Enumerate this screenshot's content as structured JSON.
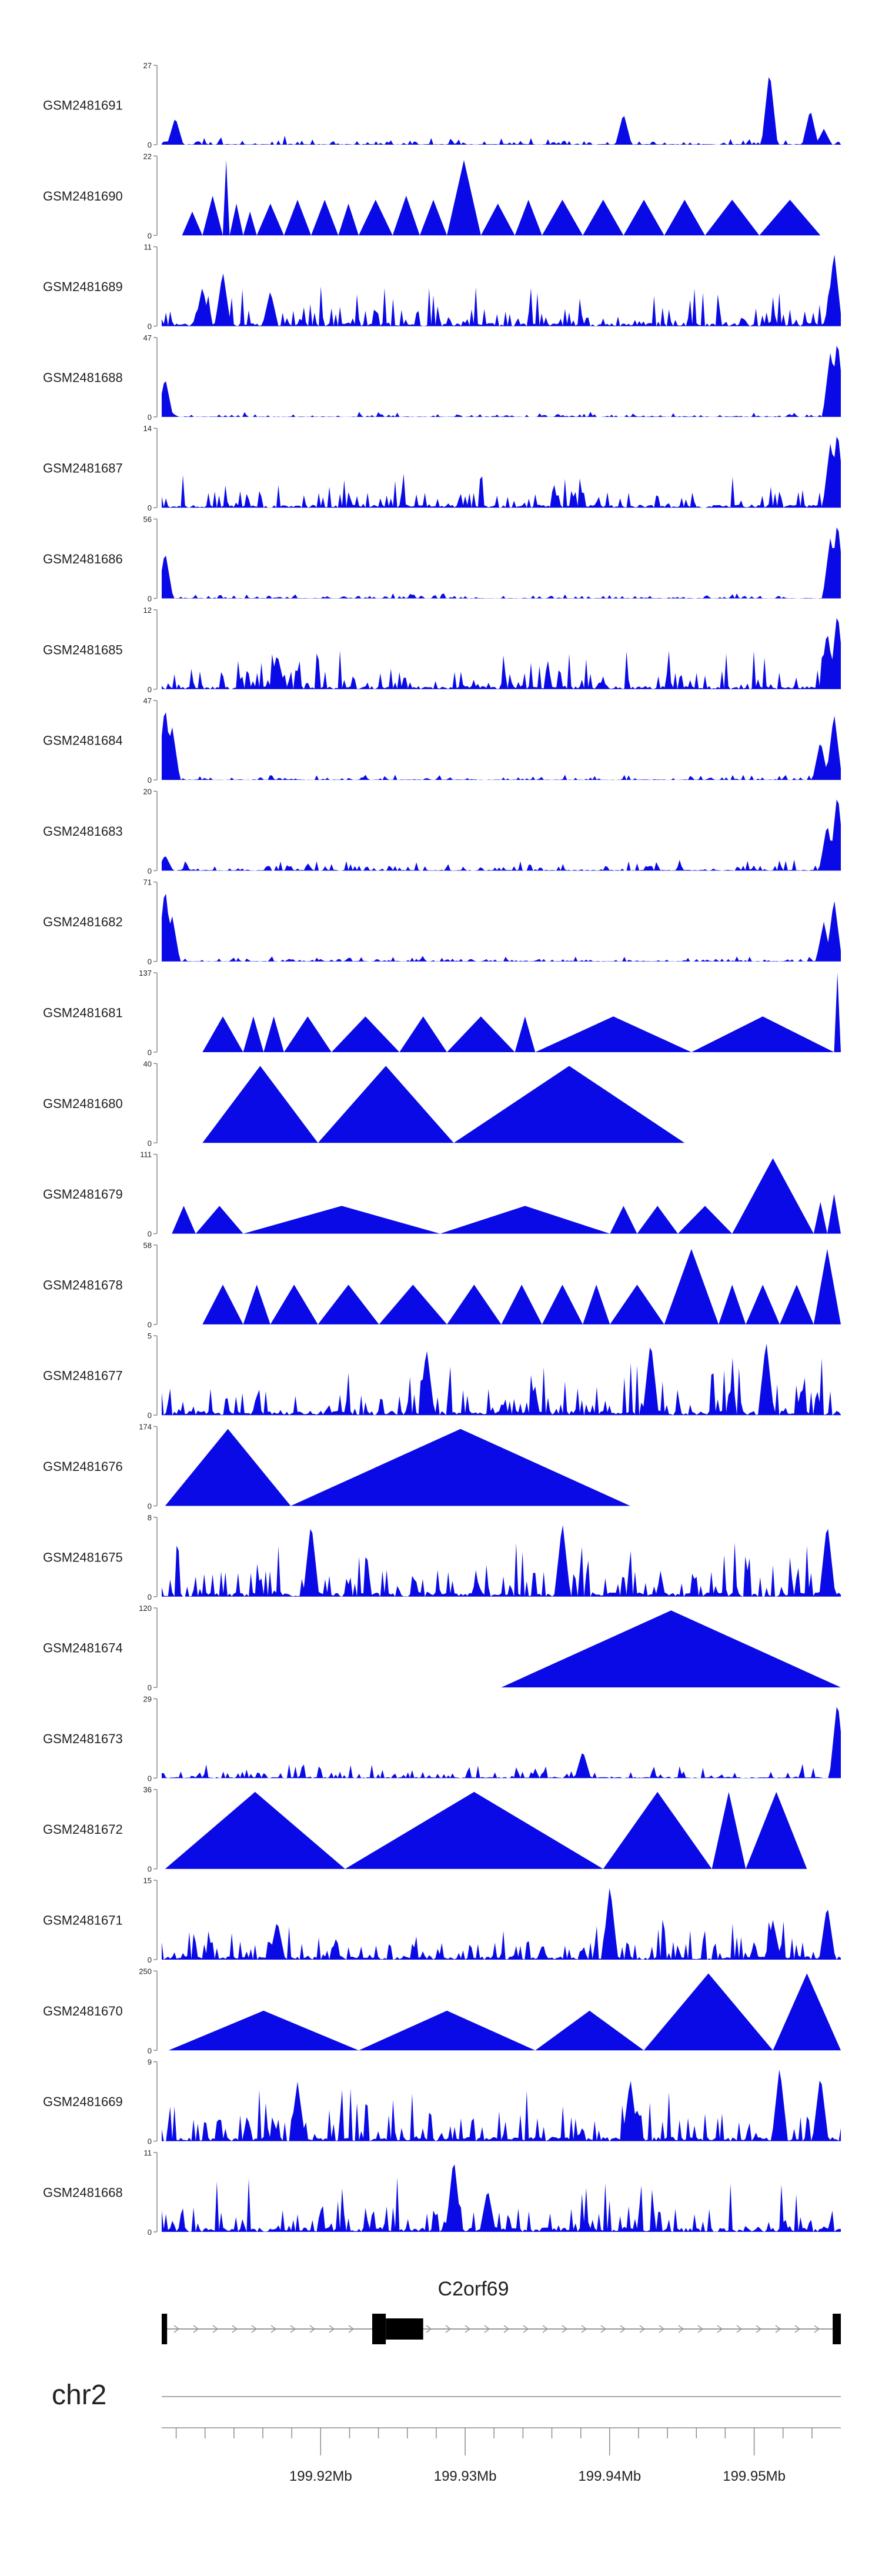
{
  "colors": {
    "signal": "#0a0ae6",
    "axis": "#8c8c8c",
    "gene": "#000000",
    "text": "#222222"
  },
  "chart_data": {
    "type": "area",
    "title": "",
    "xlabel": "",
    "xlim": [
      199.909,
      199.956
    ],
    "tracks": [
      {
        "name": "GSM2481691",
        "ymax": "27",
        "pattern": "noise",
        "peak": 27,
        "base": 0.05,
        "seed": 11,
        "spikes": [
          [
            0.02,
            0.35
          ],
          [
            0.68,
            0.4
          ],
          [
            0.895,
            0.95
          ],
          [
            0.955,
            0.45
          ],
          [
            0.975,
            0.2
          ]
        ]
      },
      {
        "name": "GSM2481690",
        "ymax": "22",
        "pattern": "tri",
        "peak": 22,
        "segs": [
          [
            0.03,
            0.06,
            0.3
          ],
          [
            0.06,
            0.09,
            0.5
          ],
          [
            0.09,
            0.1,
            0.95
          ],
          [
            0.1,
            0.12,
            0.4
          ],
          [
            0.12,
            0.14,
            0.3
          ],
          [
            0.14,
            0.18,
            0.4
          ],
          [
            0.18,
            0.22,
            0.45
          ],
          [
            0.22,
            0.26,
            0.45
          ],
          [
            0.26,
            0.29,
            0.4
          ],
          [
            0.29,
            0.34,
            0.45
          ],
          [
            0.34,
            0.38,
            0.5
          ],
          [
            0.38,
            0.42,
            0.45
          ],
          [
            0.42,
            0.47,
            0.95
          ],
          [
            0.47,
            0.52,
            0.4
          ],
          [
            0.52,
            0.56,
            0.45
          ],
          [
            0.56,
            0.62,
            0.45
          ],
          [
            0.62,
            0.68,
            0.45
          ],
          [
            0.68,
            0.74,
            0.45
          ],
          [
            0.74,
            0.8,
            0.45
          ],
          [
            0.8,
            0.88,
            0.45
          ],
          [
            0.88,
            0.97,
            0.45
          ]
        ]
      },
      {
        "name": "GSM2481689",
        "ymax": "11",
        "pattern": "noise",
        "peak": 11,
        "base": 0.22,
        "seed": 23,
        "spikes": [
          [
            0.06,
            0.5
          ],
          [
            0.09,
            0.7
          ],
          [
            0.16,
            0.45
          ],
          [
            0.99,
            0.95
          ]
        ]
      },
      {
        "name": "GSM2481688",
        "ymax": "47",
        "pattern": "noise",
        "peak": 47,
        "base": 0.03,
        "seed": 31,
        "spikes": [
          [
            0.005,
            0.5
          ],
          [
            0.985,
            0.85
          ],
          [
            0.995,
            1.0
          ]
        ]
      },
      {
        "name": "GSM2481687",
        "ymax": "14",
        "pattern": "noise",
        "peak": 14,
        "base": 0.2,
        "seed": 37,
        "spikes": [
          [
            0.985,
            0.85
          ],
          [
            0.995,
            1.0
          ]
        ]
      },
      {
        "name": "GSM2481686",
        "ymax": "56",
        "pattern": "noise",
        "peak": 56,
        "base": 0.03,
        "seed": 41,
        "spikes": [
          [
            0.005,
            0.6
          ],
          [
            0.985,
            0.8
          ],
          [
            0.995,
            1.0
          ]
        ]
      },
      {
        "name": "GSM2481685",
        "ymax": "12",
        "pattern": "noise",
        "peak": 12,
        "base": 0.22,
        "seed": 43,
        "spikes": [
          [
            0.17,
            0.45
          ],
          [
            0.98,
            0.75
          ],
          [
            0.995,
            1.0
          ]
        ]
      },
      {
        "name": "GSM2481684",
        "ymax": "47",
        "pattern": "noise",
        "peak": 47,
        "base": 0.03,
        "seed": 47,
        "spikes": [
          [
            0.005,
            0.95
          ],
          [
            0.015,
            0.7
          ],
          [
            0.97,
            0.5
          ],
          [
            0.99,
            0.85
          ]
        ]
      },
      {
        "name": "GSM2481683",
        "ymax": "20",
        "pattern": "noise",
        "peak": 20,
        "base": 0.06,
        "seed": 53,
        "spikes": [
          [
            0.005,
            0.2
          ],
          [
            0.98,
            0.6
          ],
          [
            0.995,
            1.0
          ]
        ]
      },
      {
        "name": "GSM2481682",
        "ymax": "71",
        "pattern": "noise",
        "peak": 71,
        "base": 0.03,
        "seed": 59,
        "spikes": [
          [
            0.005,
            0.95
          ],
          [
            0.015,
            0.6
          ],
          [
            0.975,
            0.5
          ],
          [
            0.99,
            0.8
          ]
        ]
      },
      {
        "name": "GSM2481681",
        "ymax": "137",
        "pattern": "tri",
        "peak": 137,
        "segs": [
          [
            0.06,
            0.12,
            0.45
          ],
          [
            0.12,
            0.15,
            0.45
          ],
          [
            0.15,
            0.18,
            0.45
          ],
          [
            0.18,
            0.25,
            0.45
          ],
          [
            0.25,
            0.35,
            0.45
          ],
          [
            0.35,
            0.42,
            0.45
          ],
          [
            0.42,
            0.52,
            0.45
          ],
          [
            0.52,
            0.55,
            0.45
          ],
          [
            0.55,
            0.78,
            0.45
          ],
          [
            0.78,
            0.99,
            0.45
          ],
          [
            0.99,
            1.0,
            1.0
          ]
        ]
      },
      {
        "name": "GSM2481680",
        "ymax": "40",
        "pattern": "tri",
        "peak": 40,
        "segs": [
          [
            0.06,
            0.23,
            0.97
          ],
          [
            0.23,
            0.43,
            0.97
          ],
          [
            0.43,
            0.77,
            0.97
          ]
        ]
      },
      {
        "name": "GSM2481679",
        "ymax": "111",
        "pattern": "tri",
        "peak": 111,
        "segs": [
          [
            0.015,
            0.05,
            0.35
          ],
          [
            0.05,
            0.12,
            0.35
          ],
          [
            0.12,
            0.41,
            0.35
          ],
          [
            0.41,
            0.66,
            0.35
          ],
          [
            0.66,
            0.7,
            0.35
          ],
          [
            0.7,
            0.76,
            0.35
          ],
          [
            0.76,
            0.84,
            0.35
          ],
          [
            0.84,
            0.96,
            0.95
          ],
          [
            0.96,
            0.98,
            0.4
          ],
          [
            0.98,
            1.0,
            0.5
          ]
        ]
      },
      {
        "name": "GSM2481678",
        "ymax": "58",
        "pattern": "tri",
        "peak": 58,
        "segs": [
          [
            0.06,
            0.12,
            0.5
          ],
          [
            0.12,
            0.16,
            0.5
          ],
          [
            0.16,
            0.23,
            0.5
          ],
          [
            0.23,
            0.32,
            0.5
          ],
          [
            0.32,
            0.42,
            0.5
          ],
          [
            0.42,
            0.5,
            0.5
          ],
          [
            0.5,
            0.56,
            0.5
          ],
          [
            0.56,
            0.62,
            0.5
          ],
          [
            0.62,
            0.66,
            0.5
          ],
          [
            0.66,
            0.74,
            0.5
          ],
          [
            0.74,
            0.82,
            0.95
          ],
          [
            0.82,
            0.86,
            0.5
          ],
          [
            0.86,
            0.91,
            0.5
          ],
          [
            0.91,
            0.96,
            0.5
          ],
          [
            0.96,
            1.0,
            0.95
          ]
        ]
      },
      {
        "name": "GSM2481677",
        "ymax": "5",
        "pattern": "noise",
        "peak": 5,
        "base": 0.32,
        "seed": 61,
        "spikes": [
          [
            0.39,
            0.85
          ],
          [
            0.72,
            0.95
          ],
          [
            0.89,
            0.95
          ]
        ]
      },
      {
        "name": "GSM2481676",
        "ymax": "174",
        "pattern": "tri",
        "peak": 174,
        "segs": [
          [
            0.005,
            0.19,
            0.97
          ],
          [
            0.19,
            0.69,
            0.97
          ]
        ]
      },
      {
        "name": "GSM2481675",
        "ymax": "8",
        "pattern": "noise",
        "peak": 8,
        "base": 0.3,
        "seed": 67,
        "spikes": [
          [
            0.22,
            0.95
          ],
          [
            0.59,
            0.95
          ],
          [
            0.98,
            0.95
          ]
        ]
      },
      {
        "name": "GSM2481674",
        "ymax": "120",
        "pattern": "tri",
        "peak": 120,
        "segs": [
          [
            0.5,
            1.0,
            0.97
          ]
        ]
      },
      {
        "name": "GSM2481673",
        "ymax": "29",
        "pattern": "noise",
        "peak": 29,
        "base": 0.08,
        "seed": 71,
        "spikes": [
          [
            0.62,
            0.35
          ],
          [
            0.995,
            1.0
          ]
        ]
      },
      {
        "name": "GSM2481672",
        "ymax": "36",
        "pattern": "tri",
        "peak": 36,
        "segs": [
          [
            0.005,
            0.27,
            0.97
          ],
          [
            0.27,
            0.65,
            0.97
          ],
          [
            0.65,
            0.81,
            0.97
          ],
          [
            0.81,
            0.86,
            0.97
          ],
          [
            0.86,
            0.95,
            0.97
          ]
        ]
      },
      {
        "name": "GSM2481671",
        "ymax": "15",
        "pattern": "noise",
        "peak": 15,
        "base": 0.22,
        "seed": 73,
        "spikes": [
          [
            0.17,
            0.5
          ],
          [
            0.66,
            0.95
          ],
          [
            0.9,
            0.5
          ],
          [
            0.98,
            0.7
          ]
        ]
      },
      {
        "name": "GSM2481670",
        "ymax": "250",
        "pattern": "tri",
        "peak": 250,
        "segs": [
          [
            0.01,
            0.29,
            0.5
          ],
          [
            0.29,
            0.55,
            0.5
          ],
          [
            0.55,
            0.71,
            0.5
          ],
          [
            0.71,
            0.9,
            0.97
          ],
          [
            0.9,
            1.0,
            0.97
          ]
        ]
      },
      {
        "name": "GSM2481669",
        "ymax": "9",
        "pattern": "noise",
        "peak": 9,
        "base": 0.3,
        "seed": 79,
        "spikes": [
          [
            0.2,
            0.75
          ],
          [
            0.69,
            0.8
          ],
          [
            0.91,
            0.95
          ],
          [
            0.97,
            0.85
          ]
        ]
      },
      {
        "name": "GSM2481668",
        "ymax": "11",
        "pattern": "noise",
        "peak": 11,
        "base": 0.3,
        "seed": 83,
        "spikes": [
          [
            0.43,
            0.95
          ],
          [
            0.48,
            0.55
          ]
        ]
      }
    ],
    "gene": {
      "name": "C2orf69",
      "exons": [
        [
          0.0,
          0.008,
          "coding"
        ],
        [
          0.31,
          0.33,
          "coding"
        ],
        [
          0.33,
          0.385,
          "utr"
        ],
        [
          0.988,
          1.0,
          "coding"
        ]
      ]
    },
    "axis": {
      "chromosome": "chr2",
      "major_ticks": [
        199.92,
        199.93,
        199.94,
        199.95
      ],
      "tick_labels": [
        "199.92Mb",
        "199.93Mb",
        "199.94Mb",
        "199.95Mb"
      ],
      "minor_ticks": [
        199.91,
        199.912,
        199.914,
        199.916,
        199.918,
        199.922,
        199.924,
        199.926,
        199.928,
        199.932,
        199.934,
        199.936,
        199.938,
        199.942,
        199.944,
        199.946,
        199.948,
        199.952,
        199.954
      ]
    }
  }
}
